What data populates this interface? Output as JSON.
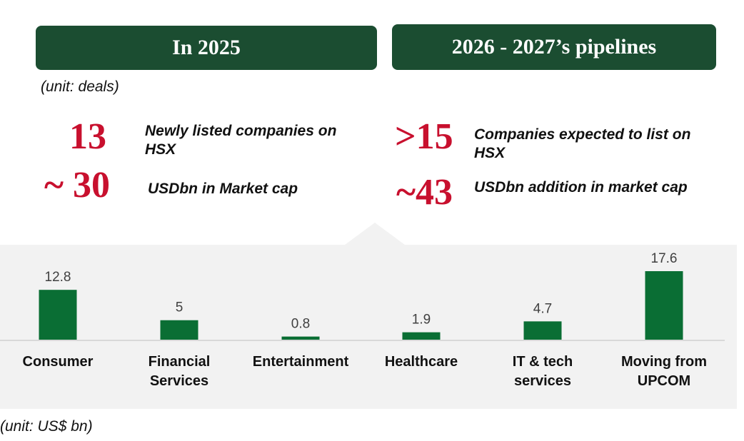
{
  "headers": {
    "left": "In 2025",
    "right": "2026 - 2027’s pipelines"
  },
  "units": {
    "deals": "(unit: deals)",
    "chart": "(unit: US$ bn)"
  },
  "stats_2025": [
    {
      "value": "13",
      "text": "Newly listed companies on HSX"
    },
    {
      "value": "~ 30",
      "text": "USDbn in Market cap"
    }
  ],
  "stats_pipeline": [
    {
      "value": ">15",
      "text": "Companies expected to list on HSX"
    },
    {
      "value": "~43",
      "text": "USDbn addition in market cap"
    }
  ],
  "colors": {
    "header_bg": "#1b4d31",
    "accent_red": "#c8102e",
    "bar": "#0a6e34",
    "panel_bg": "#f2f2f2"
  },
  "chart_data": {
    "type": "bar",
    "categories": [
      "Consumer",
      "Financial Services",
      "Entertainment",
      "Healthcare",
      "IT & tech services",
      "Moving from UPCOM"
    ],
    "category_lines": [
      [
        "Consumer"
      ],
      [
        "Financial",
        "Services"
      ],
      [
        "Entertainment"
      ],
      [
        "Healthcare"
      ],
      [
        "IT & tech",
        "services"
      ],
      [
        "Moving from",
        "UPCOM"
      ]
    ],
    "values": [
      12.8,
      5,
      0.8,
      1.9,
      4.7,
      17.6
    ],
    "value_labels": [
      "12.8",
      "5",
      "0.8",
      "1.9",
      "4.7",
      "17.6"
    ],
    "ylim": [
      0,
      17.6
    ]
  }
}
